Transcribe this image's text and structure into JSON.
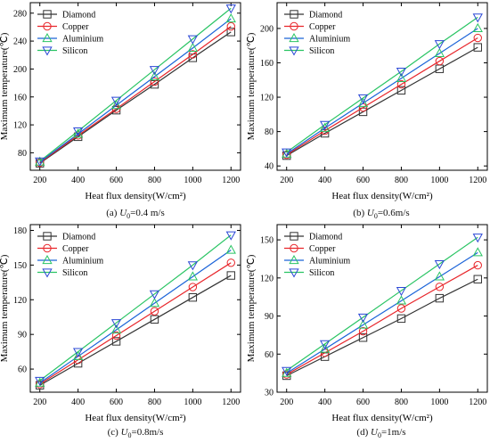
{
  "chart_data": [
    {
      "type": "line",
      "caption": {
        "prefix": "(a) ",
        "var": "U",
        "sub": "0",
        "rest": "=0.4 m/s"
      },
      "xlabel": "Heat flux density(W/cm²)",
      "ylabel": "Maximum temperature(℃)",
      "xlim": [
        150,
        1250
      ],
      "ylim": [
        55,
        295
      ],
      "xticks": [
        200,
        400,
        600,
        800,
        1000,
        1200
      ],
      "yticks": [
        80,
        120,
        160,
        200,
        240,
        280
      ],
      "legend": "top-left",
      "x": [
        200,
        400,
        600,
        800,
        1000,
        1200
      ],
      "series": [
        {
          "name": "Diamond",
          "values": [
            65,
            103,
            141,
            178,
            216,
            253
          ]
        },
        {
          "name": "Copper",
          "values": [
            66,
            105,
            143,
            182,
            221,
            261
          ]
        },
        {
          "name": "Aluminium",
          "values": [
            67,
            107,
            148,
            189,
            230,
            272
          ]
        },
        {
          "name": "Silicon",
          "values": [
            68,
            111,
            155,
            199,
            243,
            287
          ]
        }
      ]
    },
    {
      "type": "line",
      "caption": {
        "prefix": "(b) ",
        "var": "U",
        "sub": "0",
        "rest": "=0.6m/s"
      },
      "xlabel": "Heat flux density(W/cm²)",
      "ylabel": "Maximum temperature(℃)",
      "xlim": [
        150,
        1250
      ],
      "ylim": [
        35,
        230
      ],
      "xticks": [
        200,
        400,
        600,
        800,
        1000,
        1200
      ],
      "yticks": [
        40,
        80,
        120,
        160,
        200
      ],
      "legend": "top-left",
      "x": [
        200,
        400,
        600,
        800,
        1000,
        1200
      ],
      "series": [
        {
          "name": "Diamond",
          "values": [
            52,
            78,
            103,
            128,
            153,
            178
          ]
        },
        {
          "name": "Copper",
          "values": [
            53,
            81,
            108,
            135,
            162,
            189
          ]
        },
        {
          "name": "Aluminium",
          "values": [
            54,
            84,
            113,
            142,
            171,
            200
          ]
        },
        {
          "name": "Silicon",
          "values": [
            56,
            88,
            119,
            150,
            182,
            213
          ]
        }
      ]
    },
    {
      "type": "line",
      "caption": {
        "prefix": "(c) ",
        "var": "U",
        "sub": "0",
        "rest": "=0.8m/s"
      },
      "xlabel": "Heat flux density(W/cm²)",
      "ylabel": "Maximum temperature(℃)",
      "xlim": [
        150,
        1250
      ],
      "ylim": [
        40,
        185
      ],
      "xticks": [
        200,
        400,
        600,
        800,
        1000,
        1200
      ],
      "yticks": [
        60,
        90,
        120,
        150,
        180
      ],
      "legend": "top-left",
      "x": [
        200,
        400,
        600,
        800,
        1000,
        1200
      ],
      "series": [
        {
          "name": "Diamond",
          "values": [
            46,
            65,
            84,
            103,
            122,
            141
          ]
        },
        {
          "name": "Copper",
          "values": [
            47,
            68,
            89,
            110,
            131,
            152
          ]
        },
        {
          "name": "Aluminium",
          "values": [
            48,
            71,
            94,
            117,
            140,
            163
          ]
        },
        {
          "name": "Silicon",
          "values": [
            50,
            75,
            100,
            125,
            150,
            176
          ]
        }
      ]
    },
    {
      "type": "line",
      "caption": {
        "prefix": "(d) ",
        "var": "U",
        "sub": "0",
        "rest": "=1m/s"
      },
      "xlabel": "Heat flux density(W/cm²)",
      "ylabel": "Maximum temperature(℃)",
      "xlim": [
        150,
        1250
      ],
      "ylim": [
        30,
        162
      ],
      "xticks": [
        200,
        400,
        600,
        800,
        1000,
        1200
      ],
      "yticks": [
        30,
        60,
        90,
        120,
        150
      ],
      "legend": "top-left",
      "x": [
        200,
        400,
        600,
        800,
        1000,
        1200
      ],
      "series": [
        {
          "name": "Diamond",
          "values": [
            43,
            58,
            73,
            88,
            104,
            119
          ]
        },
        {
          "name": "Copper",
          "values": [
            44,
            61,
            78,
            96,
            113,
            130
          ]
        },
        {
          "name": "Aluminium",
          "values": [
            45,
            64,
            83,
            102,
            121,
            140
          ]
        },
        {
          "name": "Silicon",
          "values": [
            47,
            68,
            89,
            110,
            131,
            152
          ]
        }
      ]
    }
  ],
  "series_style": [
    {
      "color": "#333333",
      "marker": "square"
    },
    {
      "color": "#e8252a",
      "marker": "circle"
    },
    {
      "color": "#29c463",
      "line_color": "#1a63d8",
      "marker": "triangle-up"
    },
    {
      "color": "#2b48d6",
      "line_color": "#29c463",
      "marker": "triangle-down"
    }
  ]
}
